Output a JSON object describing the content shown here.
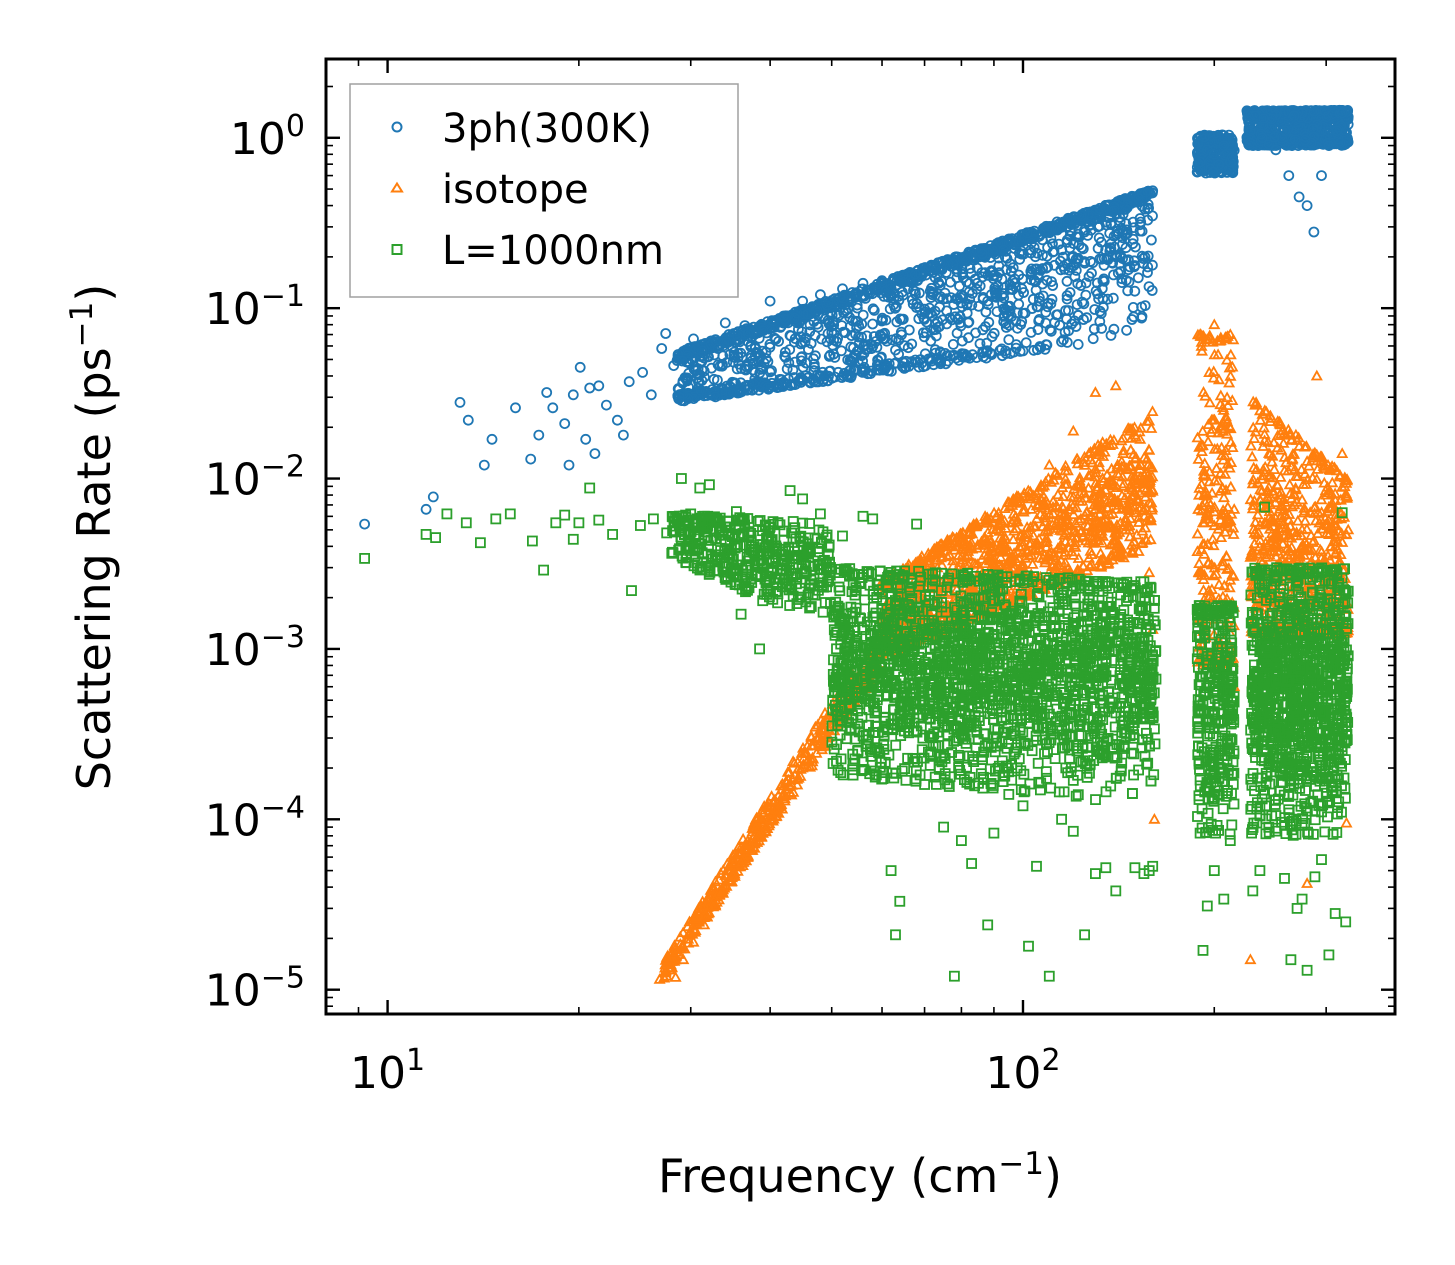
{
  "chart_data": {
    "type": "scatter",
    "title": "",
    "xlabel": "Frequency (cm",
    "xlabel_sup": "−1",
    "xlabel_tail": ")",
    "ylabel": "Scattering Rate (ps",
    "ylabel_sup": "−1",
    "ylabel_tail": ")",
    "xscale": "log",
    "yscale": "log",
    "xlim": [
      8.0,
      385.0
    ],
    "ylim": [
      7.2e-06,
      2.9
    ],
    "x_ticks": [
      {
        "value": 10,
        "base": "10",
        "exp": "1"
      },
      {
        "value": 100,
        "base": "10",
        "exp": "2"
      }
    ],
    "y_ticks": [
      {
        "value": 1,
        "base": "10",
        "exp": "0"
      },
      {
        "value": 0.1,
        "base": "10",
        "exp": "−1"
      },
      {
        "value": 0.01,
        "base": "10",
        "exp": "−2"
      },
      {
        "value": 0.001,
        "base": "10",
        "exp": "−3"
      },
      {
        "value": 0.0001,
        "base": "10",
        "exp": "−4"
      },
      {
        "value": 1e-05,
        "base": "10",
        "exp": "−5"
      }
    ],
    "legend_position": "top-left",
    "grid": false,
    "series": [
      {
        "name": "3ph(300K)",
        "marker": "circle",
        "color": "#1f77b4",
        "points": [
          [
            9.2,
            0.0054
          ],
          [
            11.5,
            0.0066
          ],
          [
            11.8,
            0.0078
          ],
          [
            13.0,
            0.028
          ],
          [
            13.4,
            0.022
          ],
          [
            14.2,
            0.012
          ],
          [
            14.6,
            0.017
          ],
          [
            15.9,
            0.026
          ],
          [
            16.8,
            0.013
          ],
          [
            17.3,
            0.018
          ],
          [
            17.8,
            0.032
          ],
          [
            18.2,
            0.026
          ],
          [
            19.0,
            0.021
          ],
          [
            19.3,
            0.012
          ],
          [
            19.6,
            0.031
          ],
          [
            20.1,
            0.045
          ],
          [
            20.5,
            0.017
          ],
          [
            20.8,
            0.034
          ],
          [
            21.2,
            0.014
          ],
          [
            21.5,
            0.035
          ],
          [
            22.1,
            0.027
          ],
          [
            23.0,
            0.022
          ],
          [
            23.5,
            0.018
          ],
          [
            24.0,
            0.037
          ],
          [
            25.2,
            0.042
          ],
          [
            26.0,
            0.031
          ],
          [
            27.0,
            0.058
          ],
          [
            27.4,
            0.071
          ],
          [
            28.2,
            0.046
          ],
          [
            29.1,
            0.049
          ],
          [
            30.3,
            0.066
          ],
          [
            31.2,
            0.052
          ],
          [
            33.1,
            0.058
          ],
          [
            34.0,
            0.082
          ],
          [
            36.5,
            0.079
          ],
          [
            38.4,
            0.033
          ],
          [
            40.0,
            0.11
          ],
          [
            42.0,
            0.09
          ],
          [
            45.0,
            0.11
          ],
          [
            48.0,
            0.12
          ],
          [
            52.0,
            0.13
          ],
          [
            56.0,
            0.14
          ],
          [
            60.0,
            0.145
          ],
          [
            66.0,
            0.13
          ],
          [
            72.0,
            0.12
          ],
          [
            80.0,
            0.12
          ],
          [
            88.0,
            0.11
          ],
          [
            96.0,
            0.13
          ],
          [
            105.0,
            0.17
          ],
          [
            115.0,
            0.22
          ],
          [
            125.0,
            0.28
          ],
          [
            135.0,
            0.32
          ],
          [
            145.0,
            0.38
          ],
          [
            152.0,
            0.44
          ],
          [
            190.0,
            0.72
          ],
          [
            195.0,
            0.85
          ],
          [
            200.0,
            0.8
          ],
          [
            207.0,
            0.9
          ],
          [
            212.0,
            0.72
          ],
          [
            228.0,
            1.1
          ],
          [
            238.0,
            1.0
          ],
          [
            250.0,
            0.85
          ],
          [
            262.0,
            0.6
          ],
          [
            272.0,
            0.45
          ],
          [
            280.0,
            0.4
          ],
          [
            287.0,
            0.28
          ],
          [
            295.0,
            0.6
          ],
          [
            303.0,
            0.9
          ],
          [
            312.0,
            1.1
          ],
          [
            318.0,
            1.4
          ]
        ],
        "bands": [
          {
            "x_from": 28.5,
            "x_to": 160,
            "y_lo": [
              0.028,
              0.07
            ],
            "y_hi": [
              0.055,
              0.5
            ],
            "y_mid": [
              0.04,
              0.38
            ],
            "spread": 0.34,
            "count": 1800
          },
          {
            "x_from": 188,
            "x_to": 215,
            "y_lo": [
              0.62,
              0.62
            ],
            "y_hi": [
              1.05,
              1.05
            ],
            "y_mid": [
              0.8,
              0.8
            ],
            "spread": 0.1,
            "count": 280
          },
          {
            "x_from": 225,
            "x_to": 325,
            "y_lo": [
              0.9,
              0.9
            ],
            "y_hi": [
              1.45,
              1.45
            ],
            "y_mid": [
              1.0,
              1.3
            ],
            "spread": 0.16,
            "count": 900
          }
        ]
      },
      {
        "name": "isotope",
        "marker": "triangle",
        "color": "#ff7f0e",
        "points": [
          [
            26.8,
            1.15e-05
          ],
          [
            27.5,
            1.2e-05
          ],
          [
            28.4,
            1.18e-05
          ],
          [
            29.2,
            1.5e-05
          ],
          [
            30.3,
            1.9e-05
          ],
          [
            31.5,
            2.4e-05
          ],
          [
            32.8,
            3.1e-05
          ],
          [
            34.0,
            4.1e-05
          ],
          [
            36.0,
            5.5e-05
          ],
          [
            38.0,
            7.5e-05
          ],
          [
            40.0,
            0.0001
          ],
          [
            42.0,
            0.00014
          ],
          [
            45.0,
            0.0002
          ],
          [
            48.0,
            0.00028
          ],
          [
            52.0,
            0.00045
          ],
          [
            56.0,
            0.0007
          ],
          [
            60.0,
            0.0015
          ],
          [
            64.0,
            0.0025
          ],
          [
            70.0,
            0.0032
          ],
          [
            80.0,
            0.0038
          ],
          [
            90.0,
            0.004
          ],
          [
            100.0,
            0.0065
          ],
          [
            110.0,
            0.012
          ],
          [
            120.0,
            0.019
          ],
          [
            130.0,
            0.032
          ],
          [
            140.0,
            0.035
          ],
          [
            150.0,
            0.018
          ],
          [
            158.0,
            0.0028
          ],
          [
            160.0,
            0.0013
          ],
          [
            161.0,
            0.0001
          ],
          [
            190.0,
            0.07
          ],
          [
            192.0,
            0.0055
          ],
          [
            195.0,
            0.008
          ],
          [
            200.0,
            0.08
          ],
          [
            205.0,
            0.0045
          ],
          [
            212.0,
            0.07
          ],
          [
            215.0,
            0.0006
          ],
          [
            228.0,
            1.5e-05
          ],
          [
            240.0,
            0.0055
          ],
          [
            250.0,
            0.0042
          ],
          [
            260.0,
            0.0029
          ],
          [
            275.0,
            0.005
          ],
          [
            280.0,
            4.2e-05
          ],
          [
            290.0,
            0.04
          ],
          [
            300.0,
            0.008
          ],
          [
            310.0,
            0.0036
          ],
          [
            318.0,
            0.014
          ],
          [
            322.0,
            0.0018
          ],
          [
            323.0,
            9.5e-05
          ]
        ],
        "bands": [
          {
            "x_from": 27,
            "x_to": 60,
            "y_lo": [
              1.1e-05,
              0.0008
            ],
            "y_hi": [
              1.4e-05,
              0.0014
            ],
            "y_mid": [
              1.2e-05,
              0.001
            ],
            "spread": 0.08,
            "count": 450
          },
          {
            "x_from": 60,
            "x_to": 160,
            "y_lo": [
              0.0009,
              0.004
            ],
            "y_hi": [
              0.0025,
              0.025
            ],
            "y_mid": [
              0.0016,
              0.009
            ],
            "spread": 0.25,
            "count": 1200
          },
          {
            "x_from": 188,
            "x_to": 215,
            "y_lo": [
              0.0008,
              0.0008
            ],
            "y_hi": [
              0.07,
              0.07
            ],
            "y_mid": [
              0.006,
              0.006
            ],
            "spread": 0.7,
            "count": 260
          },
          {
            "x_from": 228,
            "x_to": 325,
            "y_lo": [
              0.0012,
              0.0012
            ],
            "y_hi": [
              0.03,
              0.01
            ],
            "y_mid": [
              0.004,
              0.003
            ],
            "spread": 0.45,
            "count": 700
          }
        ]
      },
      {
        "name": "L=1000nm",
        "marker": "square",
        "color": "#2ca02c",
        "points": [
          [
            9.2,
            0.0034
          ],
          [
            11.5,
            0.0047
          ],
          [
            11.9,
            0.0045
          ],
          [
            12.4,
            0.0062
          ],
          [
            13.3,
            0.0055
          ],
          [
            14.0,
            0.0042
          ],
          [
            14.8,
            0.0058
          ],
          [
            15.6,
            0.0062
          ],
          [
            16.9,
            0.0043
          ],
          [
            17.6,
            0.0029
          ],
          [
            18.4,
            0.0055
          ],
          [
            19.0,
            0.0061
          ],
          [
            19.6,
            0.0044
          ],
          [
            20.0,
            0.0055
          ],
          [
            20.8,
            0.0088
          ],
          [
            21.5,
            0.0057
          ],
          [
            22.6,
            0.0047
          ],
          [
            24.2,
            0.0022
          ],
          [
            25.0,
            0.0053
          ],
          [
            26.2,
            0.0058
          ],
          [
            27.5,
            0.0048
          ],
          [
            29.0,
            0.01
          ],
          [
            30.0,
            0.0062
          ],
          [
            31.0,
            0.0088
          ],
          [
            32.1,
            0.0092
          ],
          [
            33.5,
            0.0044
          ],
          [
            34.0,
            0.0052
          ],
          [
            35.4,
            0.0064
          ],
          [
            36.0,
            0.0016
          ],
          [
            36.8,
            0.003
          ],
          [
            38.5,
            0.001
          ],
          [
            40.0,
            0.0052
          ],
          [
            43.0,
            0.0085
          ],
          [
            45.0,
            0.0076
          ],
          [
            48.0,
            0.0062
          ],
          [
            52.0,
            0.0046
          ],
          [
            56.0,
            0.006
          ],
          [
            58.0,
            0.0058
          ],
          [
            62.0,
            5e-05
          ],
          [
            63.0,
            2.1e-05
          ],
          [
            64.0,
            3.3e-05
          ],
          [
            68.0,
            0.0054
          ],
          [
            70.0,
            0.00016
          ],
          [
            75.0,
            9e-05
          ],
          [
            78.0,
            1.2e-05
          ],
          [
            80.0,
            7.5e-05
          ],
          [
            83.0,
            5.5e-05
          ],
          [
            88.0,
            2.4e-05
          ],
          [
            90.0,
            8.3e-05
          ],
          [
            95.0,
            0.00014
          ],
          [
            100.0,
            0.00012
          ],
          [
            102.0,
            1.8e-05
          ],
          [
            105.0,
            5.3e-05
          ],
          [
            110.0,
            1.2e-05
          ],
          [
            115.0,
            0.0001
          ],
          [
            120.0,
            8.5e-05
          ],
          [
            125.0,
            2.1e-05
          ],
          [
            130.0,
            4.8e-05
          ],
          [
            135.0,
            5.2e-05
          ],
          [
            140.0,
            3.8e-05
          ],
          [
            150.0,
            5.2e-05
          ],
          [
            155.0,
            4.8e-05
          ],
          [
            158.0,
            5e-05
          ],
          [
            160.0,
            5.3e-05
          ],
          [
            190.0,
            8.3e-05
          ],
          [
            192.0,
            1.7e-05
          ],
          [
            195.0,
            3.1e-05
          ],
          [
            200.0,
            5e-05
          ],
          [
            207.0,
            3.4e-05
          ],
          [
            212.0,
            7.5e-05
          ],
          [
            230.0,
            3.8e-05
          ],
          [
            236.0,
            5e-05
          ],
          [
            240.0,
            0.0068
          ],
          [
            250.0,
            0.0025
          ],
          [
            258.0,
            4.5e-05
          ],
          [
            264.0,
            1.5e-05
          ],
          [
            270.0,
            3e-05
          ],
          [
            275.0,
            3.4e-05
          ],
          [
            280.0,
            1.3e-05
          ],
          [
            288.0,
            4.6e-05
          ],
          [
            295.0,
            5.8e-05
          ],
          [
            303.0,
            1.6e-05
          ],
          [
            310.0,
            2.8e-05
          ],
          [
            318.0,
            0.0063
          ],
          [
            322.0,
            2.5e-05
          ]
        ],
        "bands": [
          {
            "x_from": 28,
            "x_to": 50,
            "y_lo": [
              0.0035,
              0.0012
            ],
            "y_hi": [
              0.0062,
              0.0055
            ],
            "y_mid": [
              0.0048,
              0.0028
            ],
            "spread": 0.14,
            "count": 420
          },
          {
            "x_from": 50,
            "x_to": 162,
            "y_lo": [
              0.00018,
              0.00012
            ],
            "y_hi": [
              0.003,
              0.0025
            ],
            "y_mid": [
              0.0008,
              0.0007
            ],
            "spread": 0.32,
            "count": 2300
          },
          {
            "x_from": 188,
            "x_to": 215,
            "y_lo": [
              8e-05,
              8e-05
            ],
            "y_hi": [
              0.0018,
              0.0018
            ],
            "y_mid": [
              0.0005,
              0.0005
            ],
            "spread": 0.42,
            "count": 330
          },
          {
            "x_from": 228,
            "x_to": 325,
            "y_lo": [
              8e-05,
              8e-05
            ],
            "y_hi": [
              0.003,
              0.003
            ],
            "y_mid": [
              0.0006,
              0.0006
            ],
            "spread": 0.4,
            "count": 1100
          }
        ]
      }
    ]
  }
}
